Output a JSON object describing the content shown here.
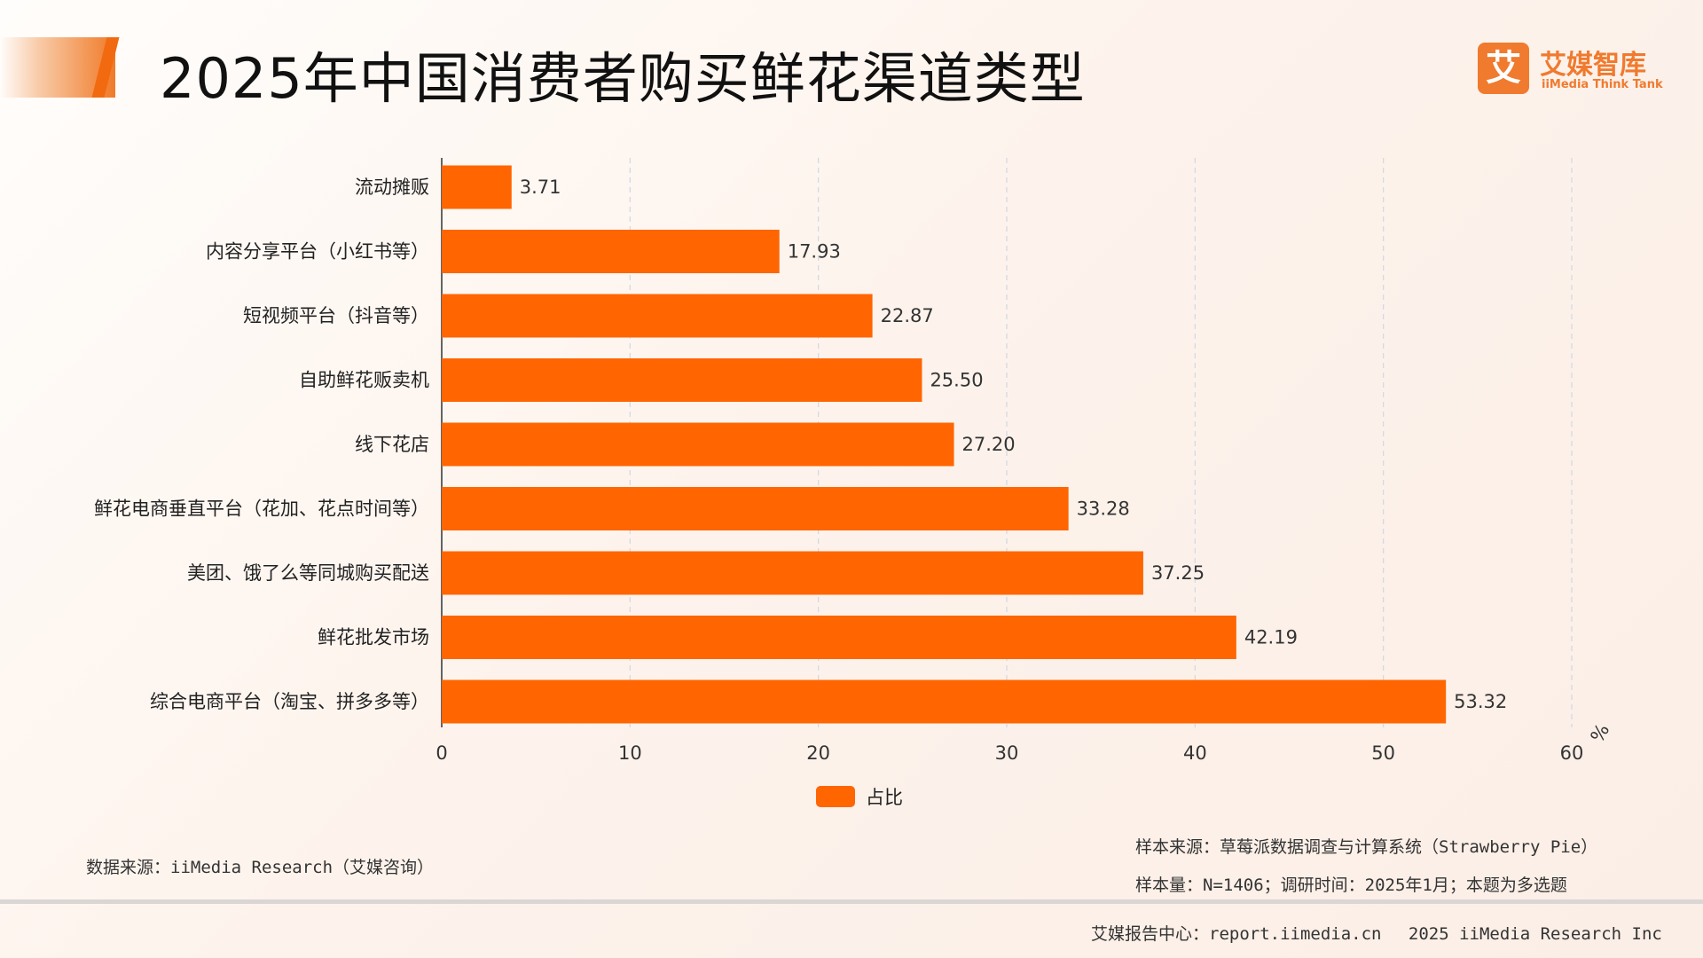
{
  "header": {
    "title": "2025年中国消费者购买鲜花渠道类型",
    "logo_mark": "艾",
    "logo_name": "艾媒智库",
    "logo_sub": "iiMedia Think Tank"
  },
  "chart_data": {
    "type": "bar",
    "orientation": "horizontal",
    "categories": [
      "流动摊贩",
      "内容分享平台（小红书等）",
      "短视频平台（抖音等）",
      "自助鲜花贩卖机",
      "线下花店",
      "鲜花电商垂直平台（花加、花点时间等）",
      "美团、饿了么等同城购买配送",
      "鲜花批发市场",
      "综合电商平台（淘宝、拼多多等）"
    ],
    "series": [
      {
        "name": "占比",
        "values": [
          3.71,
          17.93,
          22.87,
          25.5,
          27.2,
          33.28,
          37.25,
          42.19,
          53.32
        ]
      }
    ],
    "value_labels": [
      "3.71",
      "17.93",
      "22.87",
      "25.50",
      "27.20",
      "33.28",
      "37.25",
      "42.19",
      "53.32"
    ],
    "xlim": [
      0,
      60
    ],
    "xticks": [
      0,
      10,
      20,
      30,
      40,
      50,
      60
    ],
    "x_unit": "%",
    "grid": "vertical dashed",
    "legend_position": "bottom",
    "bar_color": "#ff6500"
  },
  "legend": {
    "label": "占比"
  },
  "footer": {
    "data_source": "数据来源：iiMedia Research（艾媒咨询）",
    "sample_source": "样本来源：草莓派数据调查与计算系统（Strawberry Pie）",
    "sample_info": "样本量：N=1406；调研时间：2025年1月；本题为多选题",
    "report_center": "艾媒报告中心：report.iimedia.cn　 2025 iiMedia Research Inc"
  }
}
